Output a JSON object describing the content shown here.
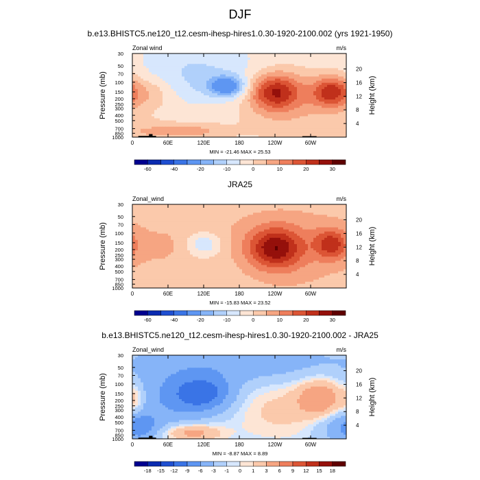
{
  "figure": {
    "title": "DJF"
  },
  "colors": {
    "wind_palette": [
      "#00008f",
      "#0a2bb0",
      "#1f4fd1",
      "#3a74e6",
      "#5e96f2",
      "#86b4f8",
      "#b0d0fb",
      "#d7e7fd",
      "#fde5d5",
      "#fbc9ab",
      "#f6a582",
      "#ee7e5c",
      "#dc5535",
      "#c0301b",
      "#95100b",
      "#5f0000"
    ],
    "diff_palette": [
      "#00008f",
      "#0a2bb0",
      "#1f4fd1",
      "#3a74e6",
      "#5e96f2",
      "#86b4f8",
      "#b0d0fb",
      "#d7e7fd",
      "#fde5d5",
      "#fbc9ab",
      "#f6a582",
      "#ee7e5c",
      "#dc5535",
      "#c0301b",
      "#95100b",
      "#5f0000"
    ],
    "topography": "#000000"
  },
  "chart_data": [
    {
      "type": "heatmap",
      "id": "panel-model",
      "title": "b.e13.BHISTC5.ne120_t12.cesm-ihesp-hires1.0.30-1920-2100.002 (yrs 1921-1950)",
      "left_label": "Zonal wind",
      "units": "m/s",
      "ylabel": "Pressure (mb)",
      "ylabel_right": "Height (km)",
      "x_ticks": [
        "0",
        "60E",
        "120E",
        "180",
        "120W",
        "60W"
      ],
      "x_tick_values": [
        0,
        60,
        120,
        180,
        240,
        300
      ],
      "x_range": [
        0,
        360
      ],
      "p_ticks": [
        "30",
        "50",
        "70",
        "100",
        "150",
        "200",
        "250",
        "300",
        "400",
        "500",
        "700",
        "850",
        "1000"
      ],
      "p_tick_values": [
        30,
        50,
        70,
        100,
        150,
        200,
        250,
        300,
        400,
        500,
        700,
        850,
        1000
      ],
      "p_range": [
        30,
        1000
      ],
      "height_ticks": [
        "4",
        "8",
        "12",
        "16",
        "20"
      ],
      "height_tick_values": [
        4,
        8,
        12,
        16,
        20
      ],
      "stats": "MIN = -21.46   MAX =  25.53",
      "min": -21.46,
      "max": 25.53,
      "colorbar_levels": [
        -70,
        -60,
        -50,
        -40,
        -30,
        -20,
        -15,
        -10,
        -5,
        0,
        5,
        10,
        15,
        20,
        25,
        30
      ],
      "colorbar_labels": [
        "-60",
        "-40",
        "-20",
        "-10",
        "0",
        "10",
        "20",
        "30"
      ],
      "colorbar_label_values": [
        -60,
        -40,
        -20,
        -10,
        0,
        10,
        20,
        30
      ],
      "features": [
        {
          "lon": 160,
          "p": 120,
          "value": -21,
          "width_lon": 22,
          "width_lnp": 0.3
        },
        {
          "lon": 120,
          "p": 110,
          "value": -6,
          "width_lon": 55,
          "width_lnp": 0.7
        },
        {
          "lon": 240,
          "p": 150,
          "value": 24,
          "width_lon": 30,
          "width_lnp": 0.55
        },
        {
          "lon": 335,
          "p": 150,
          "value": 22,
          "width_lon": 22,
          "width_lnp": 0.45
        },
        {
          "lon": 280,
          "p": 200,
          "value": 7,
          "width_lon": 70,
          "width_lnp": 1.2
        },
        {
          "lon": 30,
          "p": 160,
          "value": 6,
          "width_lon": 25,
          "width_lnp": 0.4
        },
        {
          "lon": 100,
          "p": 780,
          "value": 9,
          "width_lon": 40,
          "width_lnp": 0.22
        },
        {
          "lon": 25,
          "p": 800,
          "value": 5,
          "width_lon": 35,
          "width_lnp": 0.3
        },
        {
          "lon": 180,
          "p": 50,
          "value": -4,
          "width_lon": 120,
          "width_lnp": 0.8
        },
        {
          "lon": 60,
          "p": 40,
          "value": -3,
          "width_lon": 60,
          "width_lnp": 0.6
        }
      ],
      "background": -2,
      "topography": [
        {
          "lon_start": 10,
          "lon_end": 40,
          "p": 950
        },
        {
          "lon_start": 28,
          "lon_end": 34,
          "p": 880
        },
        {
          "lon_start": 286,
          "lon_end": 310,
          "p": 960
        }
      ]
    },
    {
      "type": "heatmap",
      "id": "panel-obs",
      "title": "JRA25",
      "left_label": "Zonal_wind",
      "units": "m/s",
      "ylabel": "Pressure (mb)",
      "ylabel_right": "Height (km)",
      "x_ticks": [
        "0",
        "60E",
        "120E",
        "180",
        "120W",
        "60W"
      ],
      "x_tick_values": [
        0,
        60,
        120,
        180,
        240,
        300
      ],
      "x_range": [
        0,
        360
      ],
      "p_ticks": [
        "30",
        "50",
        "70",
        "100",
        "150",
        "200",
        "250",
        "300",
        "400",
        "500",
        "700",
        "850",
        "1000"
      ],
      "p_tick_values": [
        30,
        50,
        70,
        100,
        150,
        200,
        250,
        300,
        400,
        500,
        700,
        850,
        1000
      ],
      "p_range": [
        30,
        1000
      ],
      "height_ticks": [
        "4",
        "8",
        "12",
        "16",
        "20"
      ],
      "height_tick_values": [
        4,
        8,
        12,
        16,
        20
      ],
      "stats": "MIN = -15.83   MAX =  23.52",
      "min": -15.83,
      "max": 23.52,
      "colorbar_levels": [
        -70,
        -60,
        -50,
        -40,
        -30,
        -20,
        -15,
        -10,
        -5,
        0,
        5,
        10,
        15,
        20,
        25,
        30
      ],
      "colorbar_labels": [
        "-60",
        "-40",
        "-20",
        "-10",
        "0",
        "10",
        "20",
        "30"
      ],
      "colorbar_label_values": [
        -60,
        -40,
        -20,
        -10,
        0,
        10,
        20,
        30
      ],
      "features": [
        {
          "lon": 120,
          "p": 160,
          "value": -12,
          "width_lon": 20,
          "width_lnp": 0.35
        },
        {
          "lon": 240,
          "p": 190,
          "value": 23,
          "width_lon": 32,
          "width_lnp": 0.6
        },
        {
          "lon": 335,
          "p": 160,
          "value": 18,
          "width_lon": 20,
          "width_lnp": 0.45
        },
        {
          "lon": 275,
          "p": 230,
          "value": 6,
          "width_lon": 75,
          "width_lnp": 1.3
        },
        {
          "lon": 60,
          "p": 200,
          "value": 3,
          "width_lon": 40,
          "width_lnp": 0.7
        },
        {
          "lon": 180,
          "p": 70,
          "value": 2,
          "width_lon": 150,
          "width_lnp": 0.8
        },
        {
          "lon": 15,
          "p": 850,
          "value": -1,
          "width_lon": 30,
          "width_lnp": 0.2
        }
      ],
      "background": 1,
      "topography": []
    },
    {
      "type": "heatmap",
      "id": "panel-diff",
      "title": "b.e13.BHISTC5.ne120_t12.cesm-ihesp-hires1.0.30-1920-2100.002 - JRA25",
      "left_label": "Zonal_wind",
      "units": "m/s",
      "ylabel": "Pressure (mb)",
      "ylabel_right": "Height (km)",
      "x_ticks": [
        "0",
        "60E",
        "120E",
        "180",
        "120W",
        "60W"
      ],
      "x_tick_values": [
        0,
        60,
        120,
        180,
        240,
        300
      ],
      "x_range": [
        0,
        360
      ],
      "p_ticks": [
        "30",
        "50",
        "70",
        "100",
        "150",
        "200",
        "250",
        "300",
        "400",
        "500",
        "700",
        "850",
        "1000"
      ],
      "p_tick_values": [
        30,
        50,
        70,
        100,
        150,
        200,
        250,
        300,
        400,
        500,
        700,
        850,
        1000
      ],
      "p_range": [
        30,
        1000
      ],
      "height_ticks": [
        "4",
        "8",
        "12",
        "16",
        "20"
      ],
      "height_tick_values": [
        4,
        8,
        12,
        16,
        20
      ],
      "stats": "MIN =  -8.87   MAX =   8.89",
      "min": -8.87,
      "max": 8.89,
      "colorbar_levels": [
        -21,
        -18,
        -15,
        -12,
        -9,
        -6,
        -3,
        -1,
        0,
        1,
        3,
        6,
        9,
        12,
        15,
        18
      ],
      "colorbar_labels": [
        "-18",
        "-15",
        "-12",
        "-9",
        "-6",
        "-3",
        "-1",
        "0",
        "1",
        "3",
        "6",
        "9",
        "12",
        "15",
        "18"
      ],
      "colorbar_label_values": [
        -18,
        -15,
        -12,
        -9,
        -6,
        -3,
        -1,
        0,
        1,
        3,
        6,
        9,
        12,
        15,
        18
      ],
      "features": [
        {
          "lon": 120,
          "p": 150,
          "value": -8,
          "width_lon": 35,
          "width_lnp": 0.5
        },
        {
          "lon": 60,
          "p": 200,
          "value": -4,
          "width_lon": 60,
          "width_lnp": 0.9
        },
        {
          "lon": 180,
          "p": 45,
          "value": -3.5,
          "width_lon": 130,
          "width_lnp": 0.6
        },
        {
          "lon": 320,
          "p": 180,
          "value": 7,
          "width_lon": 28,
          "width_lnp": 0.6
        },
        {
          "lon": 250,
          "p": 300,
          "value": 3,
          "width_lon": 70,
          "width_lnp": 1.0
        },
        {
          "lon": 100,
          "p": 780,
          "value": 6,
          "width_lon": 35,
          "width_lnp": 0.28
        },
        {
          "lon": 5,
          "p": 200,
          "value": 3,
          "width_lon": 12,
          "width_lnp": 0.5
        },
        {
          "lon": 15,
          "p": 600,
          "value": -5,
          "width_lon": 20,
          "width_lnp": 0.4
        },
        {
          "lon": 340,
          "p": 600,
          "value": -3,
          "width_lon": 30,
          "width_lnp": 0.5
        }
      ],
      "background": -1.5,
      "topography": [
        {
          "lon_start": 10,
          "lon_end": 40,
          "p": 950
        },
        {
          "lon_start": 28,
          "lon_end": 34,
          "p": 880
        },
        {
          "lon_start": 286,
          "lon_end": 310,
          "p": 960
        }
      ]
    }
  ]
}
